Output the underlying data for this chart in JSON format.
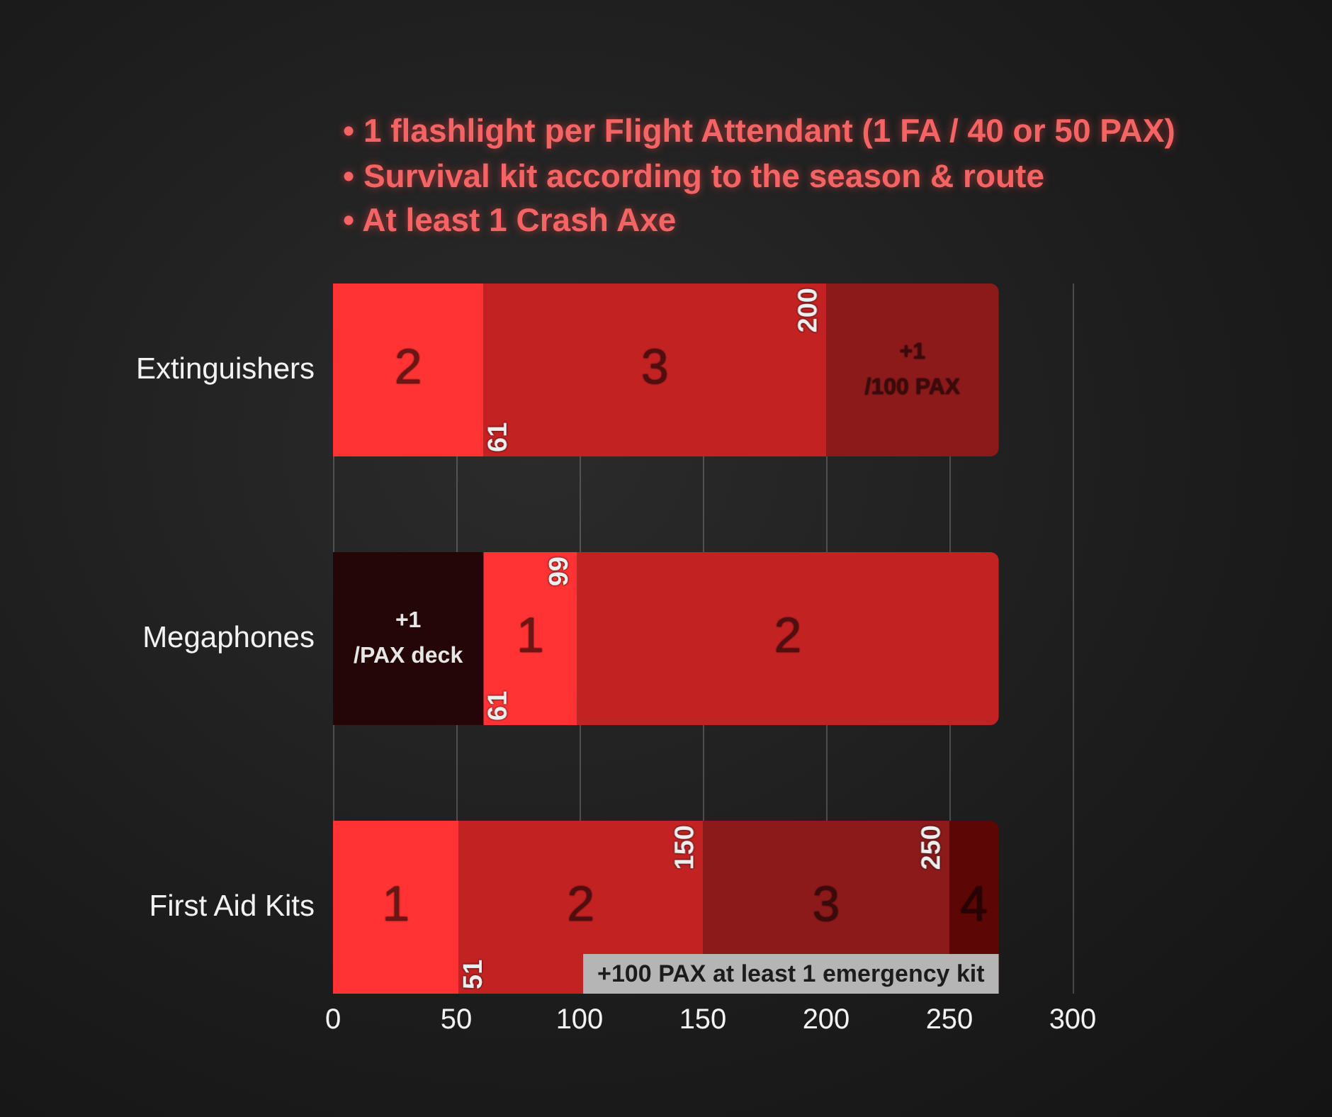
{
  "chart_data": {
    "type": "bar",
    "orientation": "horizontal",
    "stacked": true,
    "title": "• 1 flashlight per Flight Attendant (1 FA / 40 or 50 PAX)\n• Survival kit according to the season & route\n• At least 1 Crash Axe",
    "categories": [
      "Extinguishers",
      "Megaphones",
      "First Aid Kits"
    ],
    "series": [
      {
        "values": [
          61,
          61,
          51
        ],
        "colors": [
          "#ff3333",
          "#250606",
          "#ff3333"
        ]
      },
      {
        "values": [
          139,
          38,
          99
        ],
        "colors": [
          "#c22222",
          "#ff3333",
          "#c22222"
        ]
      },
      {
        "values": [
          70,
          171,
          100
        ],
        "colors": [
          "#8c1a1a",
          "#c22222",
          "#8c1a1a"
        ]
      },
      {
        "values": [
          null,
          null,
          20
        ],
        "color": "#5c0606"
      }
    ],
    "xlim": [
      0,
      300
    ],
    "xticks": [
      0,
      50,
      100,
      150,
      200,
      250,
      300
    ],
    "grid": "x",
    "annotations": [
      "2",
      "3",
      "+1\n/100 PAX",
      "+1\n/PAX deck",
      "1",
      "2",
      "1",
      "2",
      "3",
      "4",
      {
        "text": "61",
        "x": 61,
        "y": "Extinguishers"
      },
      {
        "text": "200",
        "x": 200,
        "y": "Extinguishers"
      },
      {
        "text": "61",
        "x": 61,
        "y": "Megaphones"
      },
      {
        "text": "99",
        "x": 99,
        "y": "Megaphones"
      },
      {
        "text": "51",
        "x": 51,
        "y": "First Aid Kits"
      },
      {
        "text": "150",
        "x": 150,
        "y": "First Aid Kits"
      },
      {
        "text": "250",
        "x": 250,
        "y": "First Aid Kits"
      },
      {
        "text": "+100 PAX at least 1 emergency kit",
        "x": 270,
        "y": "First Aid Kits"
      }
    ]
  }
}
